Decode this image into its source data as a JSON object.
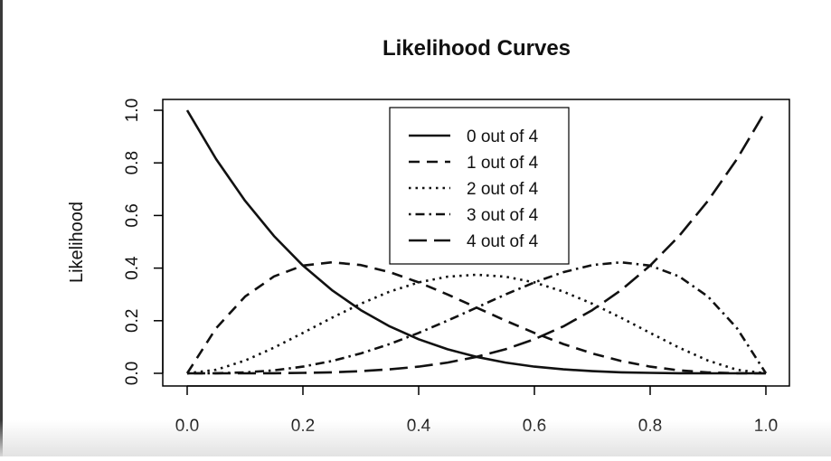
{
  "chart_data": {
    "type": "line",
    "title": "Likelihood Curves",
    "xlabel": "",
    "ylabel": "Likelihood",
    "xlim": [
      0,
      1
    ],
    "ylim": [
      0,
      1
    ],
    "x_ticks": [
      "0.0",
      "0.2",
      "0.4",
      "0.6",
      "0.8",
      "1.0"
    ],
    "y_ticks": [
      "0.0",
      "0.2",
      "0.4",
      "0.6",
      "0.8",
      "1.0"
    ],
    "grid": false,
    "legend_position": "top-center",
    "x": [
      0.0,
      0.05,
      0.1,
      0.15,
      0.2,
      0.25,
      0.3,
      0.35,
      0.4,
      0.45,
      0.5,
      0.55,
      0.6,
      0.65,
      0.7,
      0.75,
      0.8,
      0.85,
      0.9,
      0.95,
      1.0
    ],
    "series": [
      {
        "name": "0 out of 4",
        "line_style": "solid",
        "values": [
          1.0,
          0.8145,
          0.6561,
          0.522,
          0.4096,
          0.3164,
          0.2401,
          0.1785,
          0.1296,
          0.0915,
          0.0625,
          0.041,
          0.0256,
          0.015,
          0.0081,
          0.0039,
          0.0016,
          0.0005,
          0.0001,
          0.0,
          0.0
        ]
      },
      {
        "name": "1 out of 4",
        "line_style": "dashed",
        "values": [
          0.0,
          0.1715,
          0.2916,
          0.3685,
          0.4096,
          0.4219,
          0.4116,
          0.3845,
          0.3456,
          0.2995,
          0.25,
          0.2005,
          0.1536,
          0.1115,
          0.0756,
          0.0469,
          0.0256,
          0.0115,
          0.0036,
          0.0005,
          0.0
        ]
      },
      {
        "name": "2 out of 4",
        "line_style": "dotted",
        "values": [
          0.0,
          0.0135,
          0.0486,
          0.0975,
          0.1536,
          0.2109,
          0.2646,
          0.3105,
          0.3456,
          0.3675,
          0.375,
          0.3675,
          0.3456,
          0.3105,
          0.2646,
          0.2109,
          0.1536,
          0.0975,
          0.0486,
          0.0135,
          0.0
        ]
      },
      {
        "name": "3 out of 4",
        "line_style": "dotdash",
        "values": [
          0.0,
          0.0005,
          0.0036,
          0.0115,
          0.0256,
          0.0469,
          0.0756,
          0.1115,
          0.1536,
          0.2005,
          0.25,
          0.2995,
          0.3456,
          0.3845,
          0.4116,
          0.4219,
          0.4096,
          0.3685,
          0.2916,
          0.1715,
          0.0
        ]
      },
      {
        "name": "4 out of 4",
        "line_style": "longdash",
        "values": [
          0.0,
          0.0,
          0.0001,
          0.0005,
          0.0016,
          0.0039,
          0.0081,
          0.015,
          0.0256,
          0.041,
          0.0625,
          0.0915,
          0.1296,
          0.1785,
          0.2401,
          0.3164,
          0.4096,
          0.522,
          0.6561,
          0.8145,
          1.0
        ]
      }
    ]
  }
}
